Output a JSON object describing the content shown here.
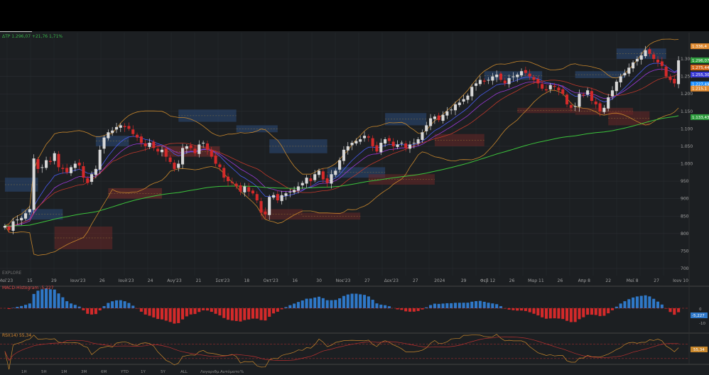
{
  "main_chart": {
    "info_label": "ΔΤΡ 1.296,07 +21,76 1,71%",
    "watermark": "EXPLORE",
    "y_ticks": [
      "1.300",
      "1.250",
      "1.200",
      "1.150",
      "1.100",
      "1.050",
      "1.000",
      "950",
      "900",
      "850",
      "800",
      "750",
      "700"
    ],
    "y_tick_values": [
      1300,
      1250,
      1200,
      1150,
      1100,
      1050,
      1000,
      950,
      900,
      850,
      800,
      750,
      700
    ],
    "x_ticks": [
      "Μαϊ'23",
      "15",
      "29",
      "Ιουν'23",
      "26",
      "Ιουλ'23",
      "24",
      "Αυγ'23",
      "21",
      "Σεπ'23",
      "18",
      "Οκτ'23",
      "16",
      "30",
      "Νοε'23",
      "27",
      "Δεκ'23",
      "27",
      "2024",
      "29",
      "Φεβ 12",
      "26",
      "Μαρ 11",
      "26",
      "Απρ 8",
      "22",
      "Μαϊ 8",
      "27",
      "Ιουν 10"
    ],
    "price_badges": [
      {
        "label": "1.336,4",
        "value": 1336.4,
        "color": "#e08a30"
      },
      {
        "label": "1.296,07",
        "value": 1296,
        "color": "#2e9e3e"
      },
      {
        "label": "1.275,44",
        "value": 1275.4,
        "color": "#d2691e"
      },
      {
        "label": "1.255,30",
        "value": 1255.3,
        "color": "#3b3bd4"
      },
      {
        "label": "1.227,49",
        "value": 1227.5,
        "color": "#1e90ff"
      },
      {
        "label": "1.215,1",
        "value": 1215.1,
        "color": "#e08a30"
      },
      {
        "label": "1.133,43",
        "value": 1133.4,
        "color": "#2e9e3e"
      }
    ]
  },
  "macd_panel": {
    "label": "MACD-Histogram -5,227",
    "y_ticks": [
      "0",
      "-10"
    ],
    "badge": "-5,227",
    "color_pos": "#2f78c8",
    "color_neg": "#d42a2a"
  },
  "rsi_panel": {
    "label": "RSI(14) 55,34",
    "badge": "55,34",
    "levels": [
      70,
      30
    ],
    "colors": {
      "rsi": "#c8872c",
      "signal": "#b83030"
    }
  },
  "toolbar": {
    "items": [
      "1Η",
      "5Η",
      "1Μ",
      "3Μ",
      "6Μ",
      "YTD",
      "1Υ",
      "5Υ",
      "ALL",
      "Λογαριθμ.",
      "Αυτόματο",
      "%"
    ]
  },
  "chart_data": {
    "type": "candlestick",
    "title": "ΔΤΡ",
    "last": 1296.07,
    "change": 21.76,
    "change_pct": 1.71,
    "ylim": [
      690,
      1350
    ],
    "closes": [
      822,
      810,
      835,
      840,
      845,
      858,
      870,
      1015,
      985,
      990,
      1010,
      1005,
      1030,
      990,
      985,
      975,
      990,
      1000,
      995,
      960,
      945,
      970,
      985,
      1040,
      1075,
      1090,
      1095,
      1105,
      1110,
      1105,
      1100,
      1085,
      1075,
      1060,
      1050,
      1060,
      1045,
      1035,
      1040,
      1020,
      1005,
      985,
      1000,
      1045,
      1050,
      1045,
      1030,
      1055,
      1060,
      1040,
      1020,
      1000,
      990,
      960,
      950,
      945,
      935,
      920,
      935,
      920,
      915,
      895,
      860,
      855,
      905,
      910,
      895,
      910,
      915,
      920,
      925,
      935,
      945,
      960,
      950,
      970,
      980,
      955,
      945,
      970,
      980,
      1010,
      1040,
      1050,
      1060,
      1065,
      1070,
      1080,
      1075,
      1050,
      1035,
      1060,
      1070,
      1065,
      1050,
      1055,
      1060,
      1045,
      1055,
      1060,
      1070,
      1090,
      1110,
      1130,
      1135,
      1125,
      1140,
      1150,
      1155,
      1170,
      1175,
      1185,
      1195,
      1220,
      1230,
      1240,
      1235,
      1240,
      1250,
      1255,
      1240,
      1230,
      1245,
      1250,
      1255,
      1265,
      1260,
      1250,
      1240,
      1230,
      1215,
      1210,
      1225,
      1220,
      1210,
      1200,
      1170,
      1160,
      1165,
      1200,
      1195,
      1210,
      1180,
      1170,
      1150,
      1160,
      1190,
      1210,
      1235,
      1250,
      1260,
      1275,
      1290,
      1300,
      1310,
      1325,
      1315,
      1300,
      1290,
      1280,
      1250,
      1240,
      1230,
      1296
    ]
  }
}
